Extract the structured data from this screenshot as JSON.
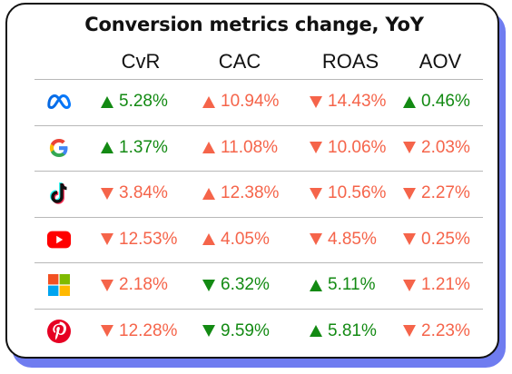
{
  "chart_data": {
    "type": "table",
    "title": "Conversion metrics change, YoY",
    "columns": [
      "CvR",
      "CAC",
      "ROAS",
      "AOV"
    ],
    "rows": [
      {
        "platform": "meta-logo",
        "cells": [
          {
            "text": "5.28%",
            "value": 5.28,
            "dir": "up",
            "color": "#138a13"
          },
          {
            "text": "10.94%",
            "value": 10.94,
            "dir": "up",
            "color": "#f5644a"
          },
          {
            "text": "14.43%",
            "value": -14.43,
            "dir": "down",
            "color": "#f5644a"
          },
          {
            "text": "0.46%",
            "value": 0.46,
            "dir": "up",
            "color": "#138a13"
          }
        ]
      },
      {
        "platform": "google-logo",
        "cells": [
          {
            "text": "1.37%",
            "value": 1.37,
            "dir": "up",
            "color": "#138a13"
          },
          {
            "text": "11.08%",
            "value": 11.08,
            "dir": "up",
            "color": "#f5644a"
          },
          {
            "text": "10.06%",
            "value": -10.06,
            "dir": "down",
            "color": "#f5644a"
          },
          {
            "text": "2.03%",
            "value": -2.03,
            "dir": "down",
            "color": "#f5644a"
          }
        ]
      },
      {
        "platform": "tiktok-logo",
        "cells": [
          {
            "text": "3.84%",
            "value": -3.84,
            "dir": "down",
            "color": "#f5644a"
          },
          {
            "text": "12.38%",
            "value": 12.38,
            "dir": "up",
            "color": "#f5644a"
          },
          {
            "text": "10.56%",
            "value": -10.56,
            "dir": "down",
            "color": "#f5644a"
          },
          {
            "text": "2.27%",
            "value": -2.27,
            "dir": "down",
            "color": "#f5644a"
          }
        ]
      },
      {
        "platform": "youtube-logo",
        "cells": [
          {
            "text": "12.53%",
            "value": -12.53,
            "dir": "down",
            "color": "#f5644a"
          },
          {
            "text": "4.05%",
            "value": 4.05,
            "dir": "up",
            "color": "#f5644a"
          },
          {
            "text": "4.85%",
            "value": -4.85,
            "dir": "down",
            "color": "#f5644a"
          },
          {
            "text": "0.25%",
            "value": -0.25,
            "dir": "down",
            "color": "#f5644a"
          }
        ]
      },
      {
        "platform": "microsoft-logo",
        "cells": [
          {
            "text": "2.18%",
            "value": -2.18,
            "dir": "down",
            "color": "#f5644a"
          },
          {
            "text": "6.32%",
            "value": -6.32,
            "dir": "down",
            "color": "#138a13"
          },
          {
            "text": "5.11%",
            "value": 5.11,
            "dir": "up",
            "color": "#138a13"
          },
          {
            "text": "1.21%",
            "value": -1.21,
            "dir": "down",
            "color": "#f5644a"
          }
        ]
      },
      {
        "platform": "pinterest-logo",
        "cells": [
          {
            "text": "12.28%",
            "value": -12.28,
            "dir": "down",
            "color": "#f5644a"
          },
          {
            "text": "9.59%",
            "value": -9.59,
            "dir": "down",
            "color": "#138a13"
          },
          {
            "text": "5.81%",
            "value": 5.81,
            "dir": "up",
            "color": "#138a13"
          },
          {
            "text": "2.23%",
            "value": -2.23,
            "dir": "down",
            "color": "#f5644a"
          }
        ]
      }
    ],
    "colors": {
      "positive": "#138a13",
      "negative": "#f5644a",
      "accent_shadow": "#6f7cf0"
    }
  }
}
